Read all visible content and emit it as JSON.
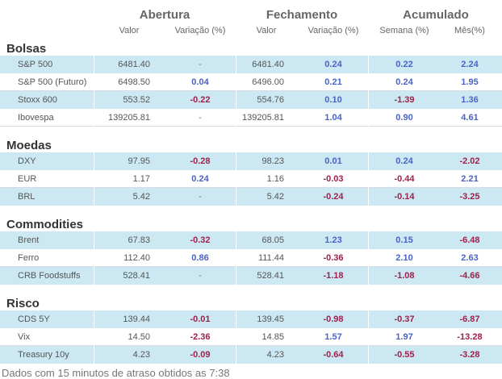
{
  "header": {
    "groups": [
      {
        "label": "Abertura"
      },
      {
        "label": "Fechamento"
      },
      {
        "label": "Acumulado"
      }
    ],
    "subheaders": [
      "Valor",
      "Variação (%)",
      "Valor",
      "Variação (%)",
      "Semana (%)",
      "Mês(%)"
    ]
  },
  "sections": [
    {
      "title": "Bolsas",
      "rows": [
        {
          "name": "S&P 500",
          "open": "6481.40",
          "open_var": "-",
          "close": "6481.40",
          "close_var": "0.24",
          "week": "0.22",
          "month": "2.24"
        },
        {
          "name": "S&P 500 (Futuro)",
          "open": "6498.50",
          "open_var": "0.04",
          "close": "6496.00",
          "close_var": "0.21",
          "week": "0.24",
          "month": "1.95"
        },
        {
          "name": "Stoxx 600",
          "open": "553.52",
          "open_var": "-0.22",
          "close": "554.76",
          "close_var": "0.10",
          "week": "-1.39",
          "month": "1.36"
        },
        {
          "name": "Ibovespa",
          "open": "139205.81",
          "open_var": "-",
          "close": "139205.81",
          "close_var": "1.04",
          "week": "0.90",
          "month": "4.61"
        }
      ]
    },
    {
      "title": "Moedas",
      "rows": [
        {
          "name": "DXY",
          "open": "97.95",
          "open_var": "-0.28",
          "close": "98.23",
          "close_var": "0.01",
          "week": "0.24",
          "month": "-2.02"
        },
        {
          "name": "EUR",
          "open": "1.17",
          "open_var": "0.24",
          "close": "1.16",
          "close_var": "-0.03",
          "week": "-0.44",
          "month": "2.21"
        },
        {
          "name": "BRL",
          "open": "5.42",
          "open_var": "-",
          "close": "5.42",
          "close_var": "-0.24",
          "week": "-0.14",
          "month": "-3.25"
        }
      ]
    },
    {
      "title": "Commodities",
      "rows": [
        {
          "name": "Brent",
          "open": "67.83",
          "open_var": "-0.32",
          "close": "68.05",
          "close_var": "1.23",
          "week": "0.15",
          "month": "-6.48"
        },
        {
          "name": "Ferro",
          "open": "112.40",
          "open_var": "0.86",
          "close": "111.44",
          "close_var": "-0.36",
          "week": "2.10",
          "month": "2.63"
        },
        {
          "name": "CRB Foodstuffs",
          "open": "528.41",
          "open_var": "-",
          "close": "528.41",
          "close_var": "-1.18",
          "week": "-1.08",
          "month": "-4.66"
        }
      ]
    },
    {
      "title": "Risco",
      "rows": [
        {
          "name": "CDS 5Y",
          "open": "139.44",
          "open_var": "-0.01",
          "close": "139.45",
          "close_var": "-0.98",
          "week": "-0.37",
          "month": "-6.87"
        },
        {
          "name": "Vix",
          "open": "14.50",
          "open_var": "-2.36",
          "close": "14.85",
          "close_var": "1.57",
          "week": "1.97",
          "month": "-13.28"
        },
        {
          "name": "Treasury 10y",
          "open": "4.23",
          "open_var": "-0.09",
          "close": "4.23",
          "close_var": "-0.64",
          "week": "-0.55",
          "month": "-3.28"
        }
      ]
    }
  ],
  "footer": "Dados com 15 minutos de atraso obtidos as 7:38",
  "colors": {
    "positive": "#4a63c4",
    "negative": "#a0204a",
    "row_band": "#cce9f3"
  }
}
